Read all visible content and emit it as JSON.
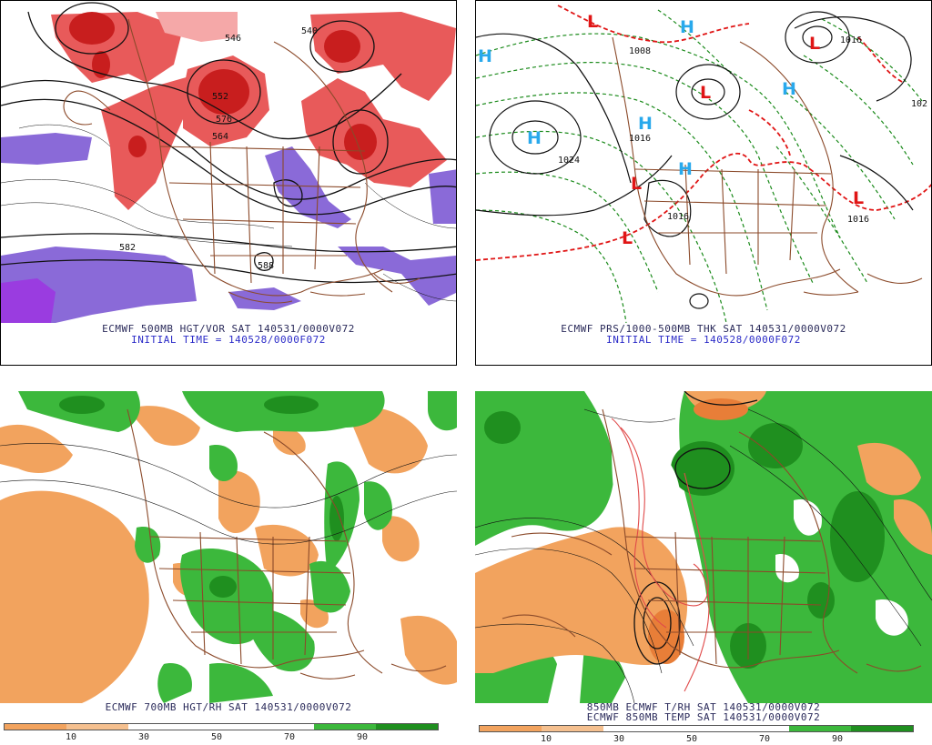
{
  "panels": {
    "top_left": {
      "caption_line1": "ECMWF 500MB HGT/VOR SAT 140531/0000V072",
      "caption_line2": "INITIAL TIME = 140528/0000F072",
      "contour_labels": [
        "582",
        "588",
        "552",
        "576",
        "564",
        "546",
        "540"
      ],
      "colors": {
        "vorticity_high": "#c81e1e",
        "vorticity_mid": "#e85a5a",
        "vorticity_low": "#f5a8a8",
        "negative": "#8a6ad8",
        "negative_deep": "#9a3ce0"
      }
    },
    "top_right": {
      "caption_line1": "ECMWF PRS/1000-500MB THK SAT 140531/0000V072",
      "caption_line2": "INITIAL TIME = 140528/0000F072",
      "high_symbol": "H",
      "low_symbol": "L",
      "isobar_labels": [
        "1008",
        "1016",
        "1024",
        "1016",
        "1016",
        "1016",
        "102"
      ],
      "colors": {
        "high": "#29a9ec",
        "low": "#e01515",
        "thickness": "#1a8a1a",
        "freezing_line": "#e01515"
      }
    },
    "bottom_left": {
      "caption_line1": "ECMWF 700MB HGT/RH SAT 140531/0000V072",
      "colorbar_ticks": [
        "10",
        "30",
        "50",
        "70",
        "90"
      ],
      "colors": {
        "dry": "#f2a35e",
        "moist": "#3cb83c",
        "very_moist": "#1f8f1f"
      }
    },
    "bottom_right": {
      "caption_line1": "850MB ECMWF T/RH SAT 140531/0000V072",
      "caption_line2": "ECMWF 850MB TEMP SAT 140531/0000V072",
      "colorbar_ticks": [
        "10",
        "30",
        "50",
        "70",
        "90"
      ],
      "colors": {
        "dry": "#f2a35e",
        "moist": "#3cb83c",
        "very_moist": "#1f8f1f",
        "isotherm": "#e04a4a"
      }
    }
  },
  "map_colors": {
    "borders": "#8b4a2a",
    "contours": "#111111"
  }
}
